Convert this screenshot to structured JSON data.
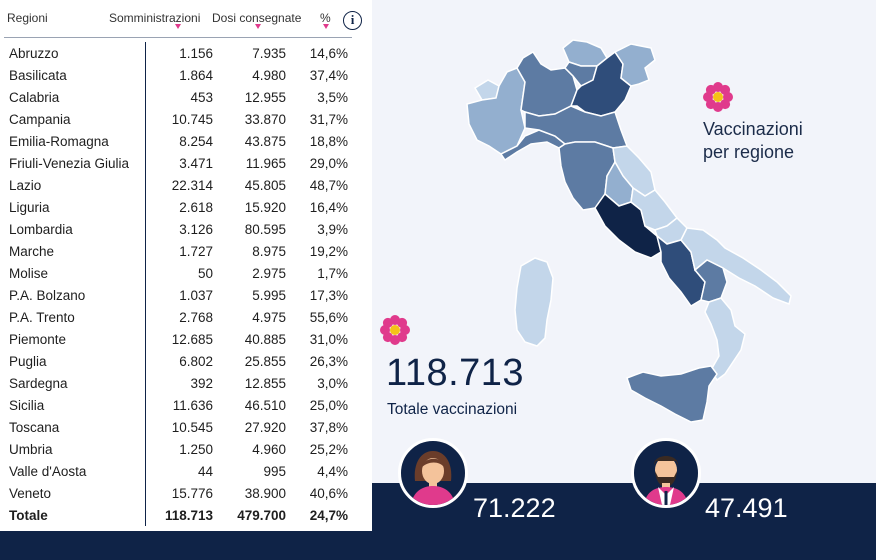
{
  "table": {
    "headers": {
      "region": "Regioni",
      "administered": "Somministrazioni",
      "delivered": "Dosi consegnate",
      "percent": "%"
    },
    "info_icon": "info-icon",
    "rows": [
      {
        "region": "Abruzzo",
        "administered": "1.156",
        "delivered": "7.935",
        "percent": "14,6%"
      },
      {
        "region": "Basilicata",
        "administered": "1.864",
        "delivered": "4.980",
        "percent": "37,4%"
      },
      {
        "region": "Calabria",
        "administered": "453",
        "delivered": "12.955",
        "percent": "3,5%"
      },
      {
        "region": "Campania",
        "administered": "10.745",
        "delivered": "33.870",
        "percent": "31,7%"
      },
      {
        "region": "Emilia-Romagna",
        "administered": "8.254",
        "delivered": "43.875",
        "percent": "18,8%"
      },
      {
        "region": "Friuli-Venezia Giulia",
        "administered": "3.471",
        "delivered": "11.965",
        "percent": "29,0%"
      },
      {
        "region": "Lazio",
        "administered": "22.314",
        "delivered": "45.805",
        "percent": "48,7%"
      },
      {
        "region": "Liguria",
        "administered": "2.618",
        "delivered": "15.920",
        "percent": "16,4%"
      },
      {
        "region": "Lombardia",
        "administered": "3.126",
        "delivered": "80.595",
        "percent": "3,9%"
      },
      {
        "region": "Marche",
        "administered": "1.727",
        "delivered": "8.975",
        "percent": "19,2%"
      },
      {
        "region": "Molise",
        "administered": "50",
        "delivered": "2.975",
        "percent": "1,7%"
      },
      {
        "region": "P.A. Bolzano",
        "administered": "1.037",
        "delivered": "5.995",
        "percent": "17,3%"
      },
      {
        "region": "P.A. Trento",
        "administered": "2.768",
        "delivered": "4.975",
        "percent": "55,6%"
      },
      {
        "region": "Piemonte",
        "administered": "12.685",
        "delivered": "40.885",
        "percent": "31,0%"
      },
      {
        "region": "Puglia",
        "administered": "6.802",
        "delivered": "25.855",
        "percent": "26,3%"
      },
      {
        "region": "Sardegna",
        "administered": "392",
        "delivered": "12.855",
        "percent": "3,0%"
      },
      {
        "region": "Sicilia",
        "administered": "11.636",
        "delivered": "46.510",
        "percent": "25,0%"
      },
      {
        "region": "Toscana",
        "administered": "10.545",
        "delivered": "27.920",
        "percent": "37,8%"
      },
      {
        "region": "Umbria",
        "administered": "1.250",
        "delivered": "4.960",
        "percent": "25,2%"
      },
      {
        "region": "Valle d'Aosta",
        "administered": "44",
        "delivered": "995",
        "percent": "4,4%"
      },
      {
        "region": "Veneto",
        "administered": "15.776",
        "delivered": "38.900",
        "percent": "40,6%"
      }
    ],
    "total": {
      "region": "Totale",
      "administered": "118.713",
      "delivered": "479.700",
      "percent": "24,7%"
    }
  },
  "map": {
    "title_line1": "Vaccinazioni",
    "title_line2": "per regione",
    "icon": "flower-icon",
    "colors": {
      "darkest": "#0f2347",
      "dark": "#2f4d7a",
      "mid": "#5d7ba3",
      "light": "#93afcf",
      "lightest": "#c3d6ea"
    }
  },
  "summary": {
    "total_value": "118.713",
    "total_label": "Totale vaccinazioni",
    "women_count": "71.222",
    "men_count": "47.491",
    "women_icon": "woman-avatar-icon",
    "men_icon": "man-avatar-icon"
  },
  "colors": {
    "navy": "#0f2347",
    "accent": "#e03a8c",
    "background": "#f2f4fa"
  }
}
